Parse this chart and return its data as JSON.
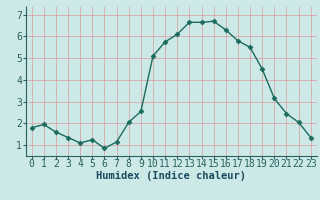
{
  "x": [
    0,
    1,
    2,
    3,
    4,
    5,
    6,
    7,
    8,
    9,
    10,
    11,
    12,
    13,
    14,
    15,
    16,
    17,
    18,
    19,
    20,
    21,
    22,
    23
  ],
  "y": [
    1.8,
    1.95,
    1.6,
    1.35,
    1.1,
    1.25,
    0.85,
    1.15,
    2.05,
    2.55,
    5.1,
    5.75,
    6.1,
    6.65,
    6.65,
    6.7,
    6.3,
    5.8,
    5.5,
    4.5,
    3.15,
    2.45,
    2.05,
    1.35
  ],
  "line_color": "#1a6b5e",
  "marker": "D",
  "marker_size": 2.5,
  "bg_color": "#cce9e7",
  "grid_color": "#d8a0a0",
  "axis_color": "#2a6060",
  "xlabel": "Humidex (Indice chaleur)",
  "xlabel_fontsize": 7.5,
  "xlabel_color": "#1a4a5e",
  "ylabel_ticks": [
    1,
    2,
    3,
    4,
    5,
    6,
    7
  ],
  "xlim": [
    -0.5,
    23.5
  ],
  "ylim": [
    0.5,
    7.4
  ],
  "tick_fontsize": 7
}
